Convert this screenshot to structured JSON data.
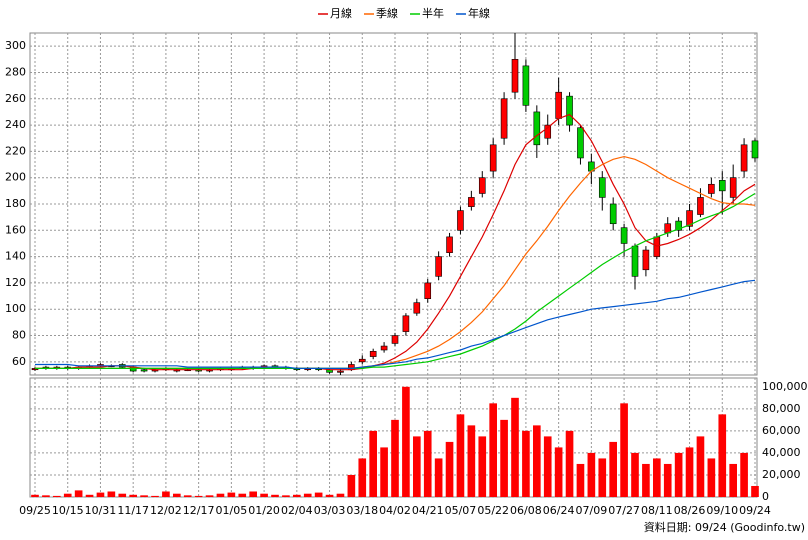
{
  "chart_data": {
    "type": "candlestick",
    "categories": [
      "09/25",
      null,
      null,
      "10/15",
      null,
      null,
      "10/31",
      null,
      null,
      "11/17",
      null,
      null,
      "12/02",
      null,
      null,
      "12/17",
      null,
      null,
      "01/05",
      null,
      null,
      "01/20",
      null,
      null,
      "02/04",
      null,
      null,
      "03/03",
      null,
      null,
      "03/18",
      null,
      null,
      "04/02",
      null,
      null,
      "04/21",
      null,
      null,
      "05/07",
      null,
      null,
      "05/22",
      null,
      null,
      "06/08",
      null,
      null,
      "06/24",
      null,
      null,
      "07/09",
      null,
      null,
      "07/27",
      null,
      null,
      "08/11",
      null,
      null,
      "08/26",
      null,
      null,
      "09/10",
      null,
      null,
      "09/24"
    ],
    "candles": {
      "up_color": "#ff0000",
      "down_color": "#00cc00",
      "open": [
        54,
        56,
        55,
        56,
        55,
        56,
        57,
        57,
        58,
        56,
        54,
        53,
        55,
        53,
        54,
        54,
        53,
        55,
        54,
        56,
        55,
        56,
        57,
        56,
        55,
        54,
        55,
        54,
        52,
        54,
        60,
        64,
        69,
        74,
        83,
        97,
        108,
        125,
        143,
        160,
        178,
        188,
        205,
        230,
        265,
        285,
        250,
        230,
        245,
        262,
        238,
        212,
        200,
        180,
        162,
        148,
        130,
        140,
        158,
        167,
        163,
        172,
        188,
        198,
        185,
        205,
        228
      ],
      "high": [
        56,
        57,
        57,
        57,
        57,
        58,
        59,
        58,
        59,
        57,
        55,
        55,
        56,
        55,
        55,
        55,
        55,
        56,
        56,
        57,
        57,
        58,
        58,
        57,
        56,
        56,
        56,
        55,
        55,
        60,
        65,
        70,
        75,
        82,
        97,
        108,
        123,
        144,
        158,
        178,
        190,
        205,
        230,
        265,
        310,
        290,
        255,
        248,
        276,
        265,
        240,
        218,
        205,
        185,
        165,
        150,
        148,
        158,
        170,
        170,
        180,
        192,
        200,
        205,
        210,
        230,
        230
      ],
      "low": [
        53,
        54,
        54,
        54,
        54,
        55,
        56,
        56,
        55,
        52,
        52,
        52,
        53,
        52,
        53,
        52,
        52,
        53,
        53,
        54,
        54,
        55,
        55,
        54,
        53,
        53,
        53,
        51,
        50,
        53,
        58,
        62,
        67,
        72,
        80,
        95,
        105,
        122,
        140,
        157,
        175,
        185,
        200,
        225,
        260,
        250,
        215,
        225,
        240,
        235,
        210,
        195,
        175,
        160,
        140,
        115,
        125,
        138,
        155,
        155,
        160,
        170,
        185,
        172,
        180,
        200,
        212
      ],
      "close": [
        55,
        55,
        56,
        55,
        56,
        57,
        58,
        57,
        56,
        53,
        53,
        54,
        54,
        54,
        54,
        53,
        54,
        54,
        55,
        55,
        56,
        57,
        56,
        55,
        54,
        55,
        54,
        52,
        53,
        58,
        62,
        68,
        72,
        80,
        95,
        105,
        120,
        140,
        155,
        175,
        185,
        200,
        225,
        260,
        290,
        255,
        225,
        240,
        265,
        240,
        215,
        205,
        185,
        165,
        150,
        125,
        145,
        155,
        165,
        160,
        175,
        185,
        195,
        190,
        200,
        225,
        215
      ]
    },
    "series": [
      {
        "name": "月線",
        "color": "#dd0000",
        "values": [
          55,
          55,
          55,
          55,
          56,
          56,
          56,
          57,
          57,
          56,
          55,
          54,
          54,
          54,
          54,
          54,
          54,
          54,
          54,
          54,
          55,
          55,
          55,
          55,
          55,
          55,
          55,
          54,
          54,
          54,
          55,
          57,
          59,
          63,
          68,
          75,
          85,
          97,
          110,
          125,
          140,
          155,
          172,
          190,
          210,
          225,
          232,
          238,
          245,
          248,
          240,
          228,
          212,
          195,
          180,
          162,
          152,
          148,
          150,
          153,
          157,
          162,
          168,
          175,
          182,
          190,
          195
        ]
      },
      {
        "name": "季線",
        "color": "#ff6600",
        "values": [
          55,
          55,
          55,
          55,
          55,
          55,
          55,
          55,
          55,
          55,
          55,
          55,
          55,
          55,
          55,
          55,
          55,
          55,
          55,
          55,
          55,
          55,
          55,
          55,
          55,
          55,
          55,
          55,
          55,
          55,
          56,
          57,
          58,
          60,
          62,
          65,
          68,
          72,
          77,
          83,
          90,
          98,
          108,
          118,
          130,
          142,
          152,
          163,
          175,
          186,
          196,
          205,
          210,
          214,
          216,
          214,
          210,
          205,
          200,
          196,
          192,
          188,
          184,
          181,
          180,
          180,
          179
        ]
      },
      {
        "name": "半年",
        "color": "#00cc00",
        "values": [
          55,
          55,
          55,
          55,
          55,
          55,
          55,
          55,
          55,
          55,
          55,
          55,
          55,
          55,
          55,
          55,
          55,
          55,
          55,
          55,
          55,
          55,
          55,
          55,
          55,
          55,
          55,
          55,
          55,
          55,
          55,
          56,
          56,
          57,
          58,
          59,
          60,
          62,
          64,
          66,
          69,
          72,
          76,
          80,
          85,
          91,
          98,
          104,
          110,
          116,
          122,
          128,
          134,
          139,
          144,
          148,
          152,
          155,
          158,
          161,
          164,
          168,
          171,
          174,
          178,
          183,
          188
        ]
      },
      {
        "name": "年線",
        "color": "#0055cc",
        "values": [
          58,
          58,
          58,
          58,
          57,
          57,
          57,
          57,
          57,
          57,
          57,
          57,
          57,
          57,
          56,
          56,
          56,
          56,
          56,
          56,
          56,
          56,
          56,
          56,
          55,
          55,
          55,
          55,
          55,
          55,
          56,
          57,
          58,
          59,
          60,
          62,
          63,
          65,
          67,
          69,
          72,
          74,
          77,
          80,
          83,
          86,
          89,
          92,
          94,
          96,
          98,
          100,
          101,
          102,
          103,
          104,
          105,
          106,
          108,
          109,
          111,
          113,
          115,
          117,
          119,
          121,
          122
        ]
      }
    ],
    "ylim": [
      50,
      310
    ],
    "yticks": [
      60,
      80,
      100,
      120,
      140,
      160,
      180,
      200,
      220,
      240,
      260,
      280,
      300
    ],
    "grid": true,
    "legend": "top",
    "volume": {
      "color": "#ff0000",
      "values": [
        2000,
        1500,
        1000,
        3000,
        6000,
        2000,
        4000,
        5000,
        3000,
        2000,
        1500,
        1000,
        5000,
        3000,
        1500,
        1000,
        1500,
        3000,
        4000,
        3000,
        5000,
        3000,
        2000,
        1500,
        2000,
        3000,
        4000,
        2000,
        3000,
        20000,
        35000,
        60000,
        45000,
        70000,
        100000,
        55000,
        60000,
        35000,
        50000,
        75000,
        65000,
        55000,
        85000,
        70000,
        90000,
        60000,
        65000,
        55000,
        45000,
        60000,
        30000,
        40000,
        35000,
        50000,
        85000,
        40000,
        30000,
        35000,
        30000,
        40000,
        45000,
        55000,
        35000,
        75000,
        30000,
        40000,
        10000
      ],
      "ylim": [
        0,
        108000
      ],
      "yticks": [
        0,
        {
          "value": 20000,
          "label": "20,000"
        },
        {
          "value": 40000,
          "label": "40,000"
        },
        {
          "value": 60000,
          "label": "60,000"
        },
        {
          "value": 80000,
          "label": "80,000"
        },
        {
          "value": 100000,
          "label": "100,000"
        }
      ]
    },
    "source": "資料日期: 09/24 (Goodinfo.tw)"
  }
}
